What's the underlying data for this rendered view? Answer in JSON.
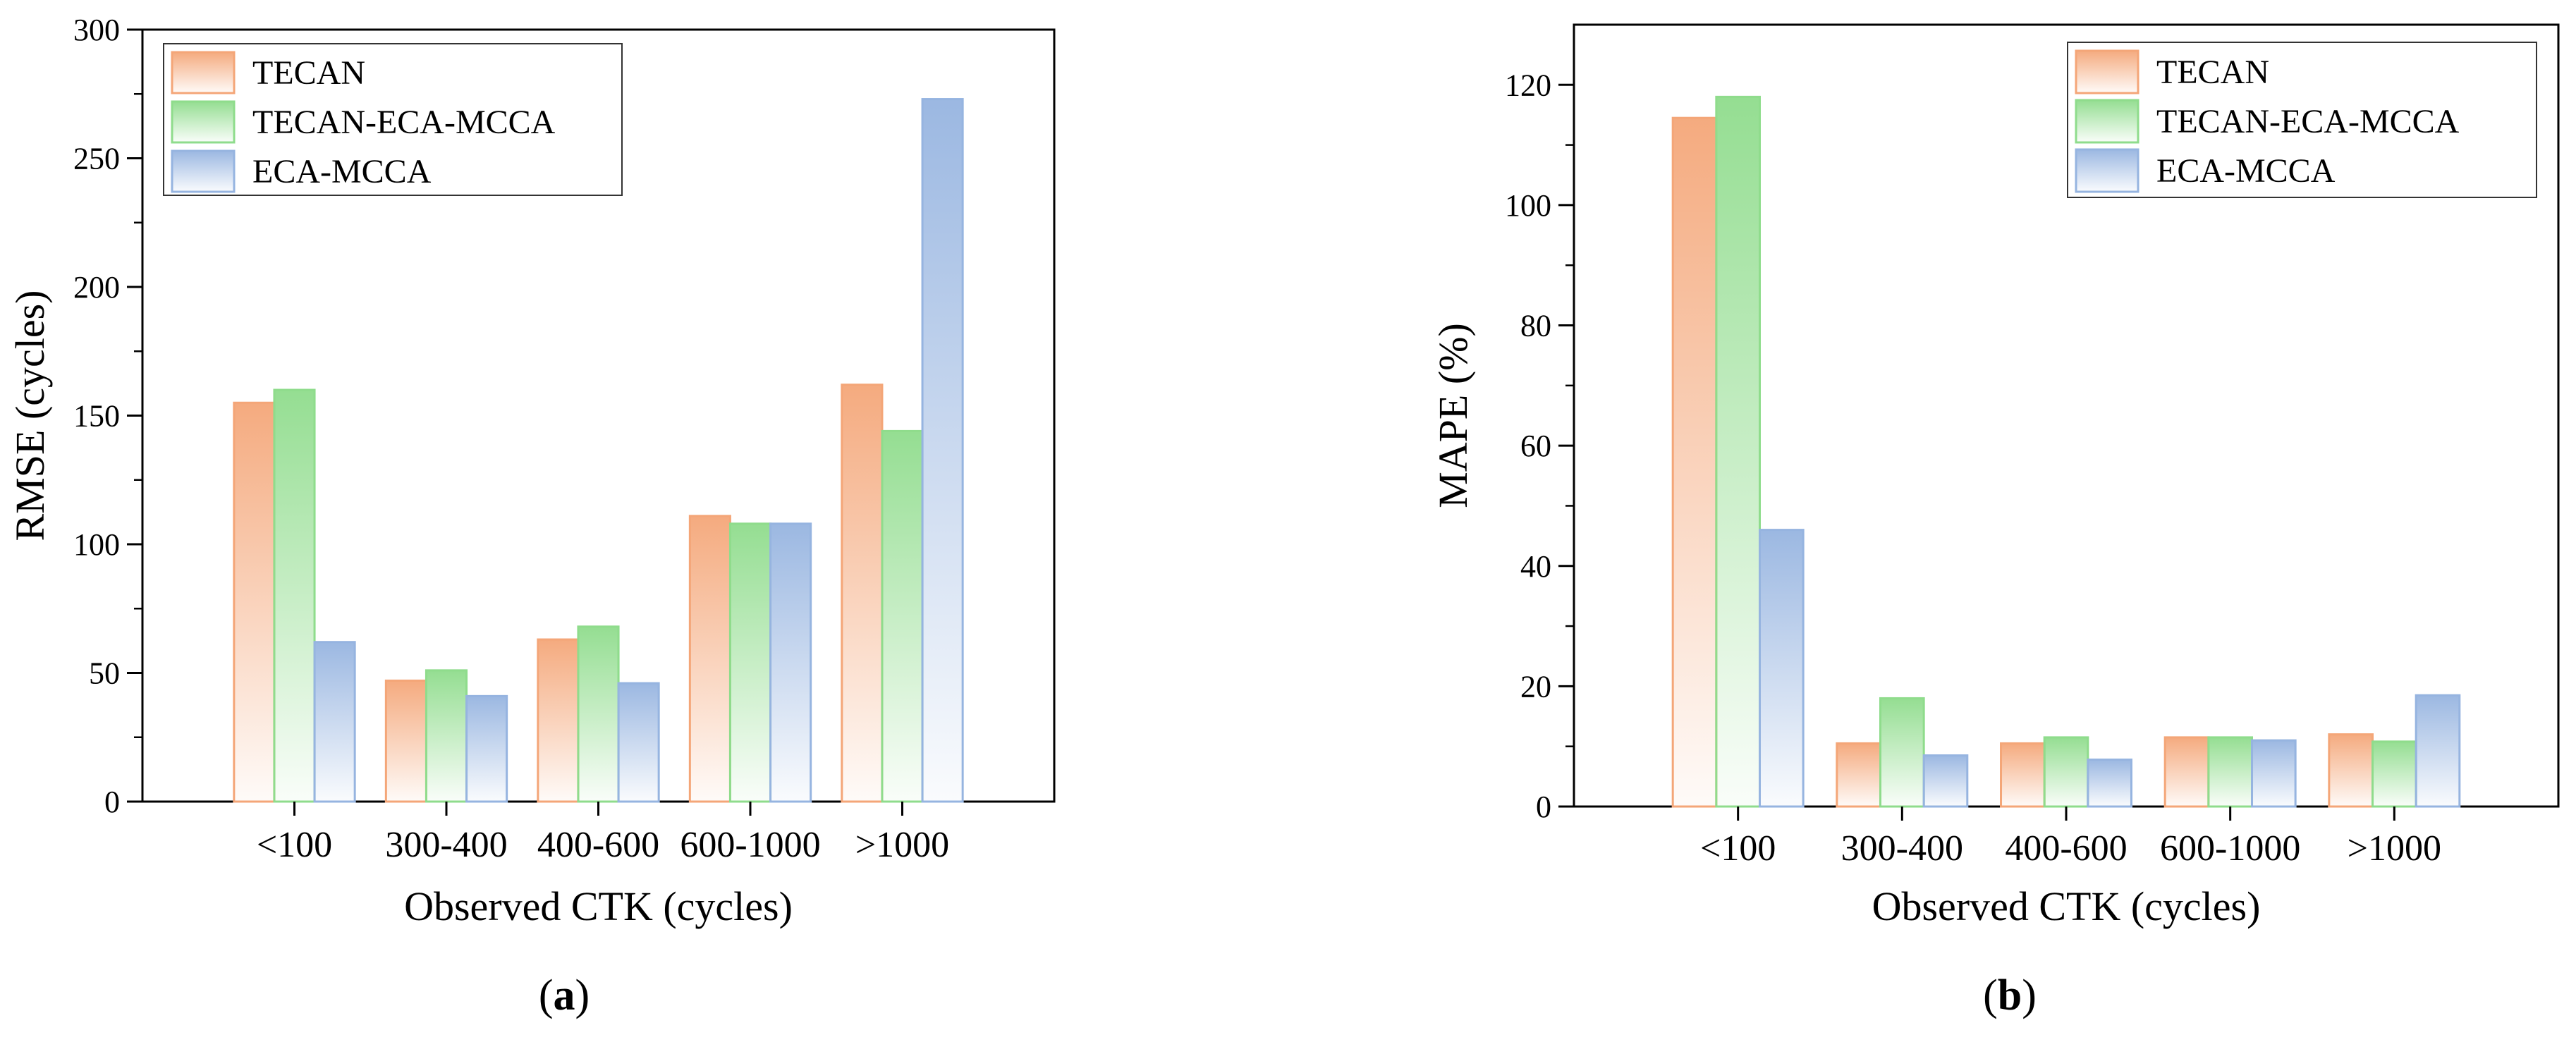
{
  "chart_data": [
    {
      "type": "bar",
      "panel_label": "a",
      "title": "",
      "xlabel": "Observed CTK (cycles)",
      "ylabel": "RMSE (cycles)",
      "ylim": [
        0,
        300
      ],
      "ytick_step": 50,
      "yticks": [
        "0",
        "50",
        "100",
        "150",
        "200",
        "250",
        "300"
      ],
      "categories": [
        "<100",
        "300-400",
        "400-600",
        "600-1000",
        ">1000"
      ],
      "series": [
        {
          "name": "TECAN",
          "color": "#f4a678",
          "values": [
            155,
            47,
            63,
            111,
            162
          ]
        },
        {
          "name": "TECAN-ECA-MCCA",
          "color": "#8fdc8c",
          "values": [
            160,
            51,
            68,
            108,
            144
          ]
        },
        {
          "name": "ECA-MCCA",
          "color": "#96b4e0",
          "values": [
            62,
            41,
            46,
            108,
            273
          ]
        }
      ],
      "legend_position": "top-left",
      "grid": false
    },
    {
      "type": "bar",
      "panel_label": "b",
      "title": "",
      "xlabel": "Observed CTK (cycles)",
      "ylabel": "MAPE (%)",
      "ylim": [
        0,
        130
      ],
      "ytick_step": 20,
      "yticks": [
        "0",
        "20",
        "40",
        "60",
        "80",
        "100",
        "120"
      ],
      "categories": [
        "<100",
        "300-400",
        "400-600",
        "600-1000",
        ">1000"
      ],
      "series": [
        {
          "name": "TECAN",
          "color": "#f4a678",
          "values": [
            114.5,
            10.5,
            10.5,
            11.5,
            12.0
          ]
        },
        {
          "name": "TECAN-ECA-MCCA",
          "color": "#8fdc8c",
          "values": [
            118.0,
            18.0,
            11.5,
            11.5,
            10.8
          ]
        },
        {
          "name": "ECA-MCCA",
          "color": "#96b4e0",
          "values": [
            46.0,
            8.5,
            7.8,
            11.0,
            18.5
          ]
        }
      ],
      "legend_position": "top-right",
      "grid": false
    }
  ],
  "captions": {
    "a": {
      "open": "(",
      "letter": "a",
      "close": ")"
    },
    "b": {
      "open": "(",
      "letter": "b",
      "close": ")"
    }
  }
}
